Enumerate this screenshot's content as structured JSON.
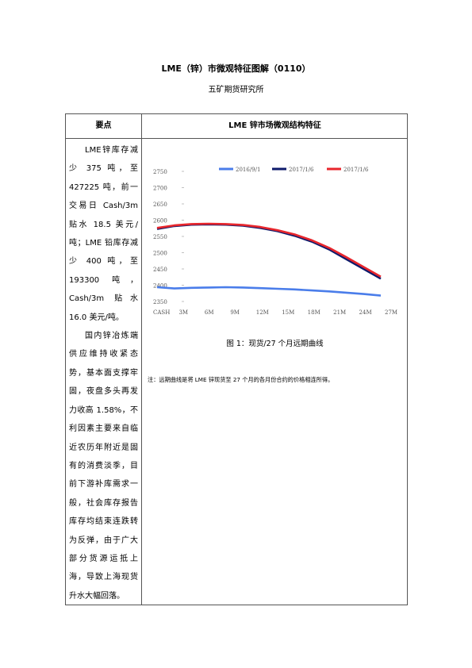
{
  "title": "LME（锌）市微观特征图解（0110）",
  "subtitle": "五矿期货研究所",
  "table": {
    "header_left": "要点",
    "header_right": "LME 锌市场微观结构特征",
    "points": [
      "LME锌库存减少 375 吨，至 427225 吨，前一交易日 Cash/3m 贴水 18.5 美元/吨；LME 铅库存减少 400 吨，至 193300 吨，Cash/3m 贴水 16.0 美元/吨。",
      "国内锌冶炼端供应维持收紧态势，基本面支撑牢固，夜盘多头再发力收高 1.58%，不利因素主要来自临近农历年附近是固有的消费淡季，目前下游补库需求一般，社会库存报告库存均结束连跌转为反弹，由于广大部分货源运抵上海，导致上海现货升水大幅回落。"
    ],
    "caption": "图 1：现货/27 个月远期曲线",
    "note": "注：远期曲线是将 LME 锌现货至 27 个月的各月份合约的价格相连所得。"
  },
  "chart_data": {
    "type": "line",
    "title": "",
    "xlabel": "",
    "ylabel": "",
    "x_ticks": [
      "CASH",
      "3M",
      "6M",
      "9M",
      "12M",
      "15M",
      "18M",
      "21M",
      "24M",
      "27M"
    ],
    "y_ticks": [
      2350,
      2400,
      2450,
      2500,
      2550,
      2600,
      2650,
      2700,
      2750
    ],
    "ylim": [
      2350,
      2750
    ],
    "legend_position": "top",
    "series": [
      {
        "name": "2016/9/1",
        "color": "#4a7dea",
        "values": [
          2394,
          2390,
          2392,
          2393,
          2394,
          2393,
          2391,
          2389,
          2387,
          2384,
          2381,
          2377,
          2373,
          2368
        ]
      },
      {
        "name": "2017/1/6",
        "color": "#0d1a6b",
        "values": [
          2573,
          2582,
          2586,
          2587,
          2586,
          2583,
          2576,
          2566,
          2552,
          2534,
          2510,
          2480,
          2450,
          2420
        ]
      },
      {
        "name": "2017/1/6",
        "color": "#e8262c",
        "values": [
          2576,
          2584,
          2588,
          2589,
          2588,
          2585,
          2579,
          2569,
          2556,
          2538,
          2515,
          2486,
          2456,
          2426
        ]
      }
    ]
  }
}
